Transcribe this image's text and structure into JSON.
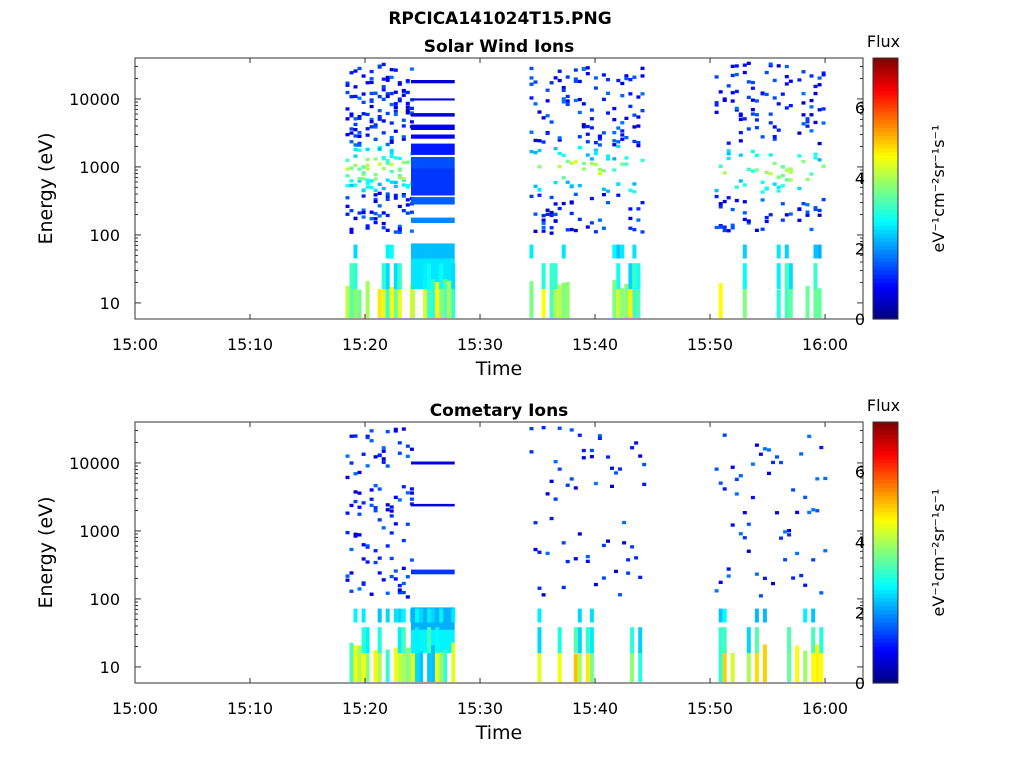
{
  "figure_title": "RPCICA141024T15.PNG",
  "chart_data": [
    {
      "type": "heatmap",
      "title": "Solar Wind Ions",
      "xlabel": "Time",
      "ylabel": "Energy (eV)",
      "x_ticks": [
        "15:00",
        "15:10",
        "15:20",
        "15:30",
        "15:40",
        "15:50",
        "16:00"
      ],
      "y_ticks": [
        {
          "value": 10,
          "label": "10"
        },
        {
          "value": 100,
          "label": "100"
        },
        {
          "value": 1000,
          "label": "1000"
        },
        {
          "value": 10000,
          "label": "10000"
        }
      ],
      "xlim_minutes": [
        0,
        63.3
      ],
      "ylim_eV": [
        5.8,
        40000
      ],
      "y_scale": "log",
      "colorbar": {
        "title": "Flux",
        "unit": "eV⁻¹cm⁻²sr⁻¹s⁻¹",
        "range": [
          0,
          7.4
        ],
        "ticks": [
          "0",
          "2",
          "4",
          "6"
        ],
        "colormap": "jet"
      },
      "sweeps": [
        {
          "t": [
            18.3,
            24.0
          ],
          "mode": "dense",
          "peak_eV": 880,
          "peak": 4.2
        },
        {
          "t": [
            24.0,
            27.8
          ],
          "mode": "bands",
          "peak": 3.0
        },
        {
          "t": [
            34.3,
            38.5
          ],
          "mode": "sparse",
          "peak_eV": 850,
          "peak": 4.4
        },
        {
          "t": [
            38.5,
            41.0
          ],
          "mode": "sparse",
          "peak_eV": 850,
          "peak": 4.3
        },
        {
          "t": [
            41.5,
            44.3
          ],
          "mode": "sparse",
          "peak_eV": 850,
          "peak": 4.1
        },
        {
          "t": [
            50.4,
            54.0
          ],
          "mode": "sparse",
          "peak_eV": 850,
          "peak": 4.0
        },
        {
          "t": [
            54.4,
            57.0
          ],
          "mode": "sparse",
          "peak_eV": 850,
          "peak": 4.3
        },
        {
          "t": [
            57.6,
            60.0
          ],
          "mode": "sparse",
          "peak_eV": 850,
          "peak": 4.0
        }
      ]
    },
    {
      "type": "heatmap",
      "title": "Cometary Ions",
      "xlabel": "Time",
      "ylabel": "Energy (eV)",
      "x_ticks": [
        "15:00",
        "15:10",
        "15:20",
        "15:30",
        "15:40",
        "15:50",
        "16:00"
      ],
      "y_ticks": [
        {
          "value": 10,
          "label": "10"
        },
        {
          "value": 100,
          "label": "100"
        },
        {
          "value": 1000,
          "label": "1000"
        },
        {
          "value": 10000,
          "label": "10000"
        }
      ],
      "xlim_minutes": [
        0,
        63.3
      ],
      "ylim_eV": [
        5.8,
        40000
      ],
      "y_scale": "log",
      "colorbar": {
        "title": "Flux",
        "unit": "eV⁻¹cm⁻²sr⁻¹s⁻¹",
        "range": [
          0,
          7.4
        ],
        "ticks": [
          "0",
          "2",
          "4",
          "6"
        ],
        "colormap": "jet"
      },
      "sweeps": [
        {
          "t": [
            18.3,
            24.0
          ],
          "mode": "dense-low",
          "peak": 5.2
        },
        {
          "t": [
            24.0,
            27.8
          ],
          "mode": "bands-low",
          "peak": 2.8
        },
        {
          "t": [
            34.3,
            44.3
          ],
          "mode": "sparse-low",
          "peak": 5.6
        },
        {
          "t": [
            50.4,
            60.0
          ],
          "mode": "sparse-low",
          "peak": 5.0
        }
      ]
    }
  ]
}
